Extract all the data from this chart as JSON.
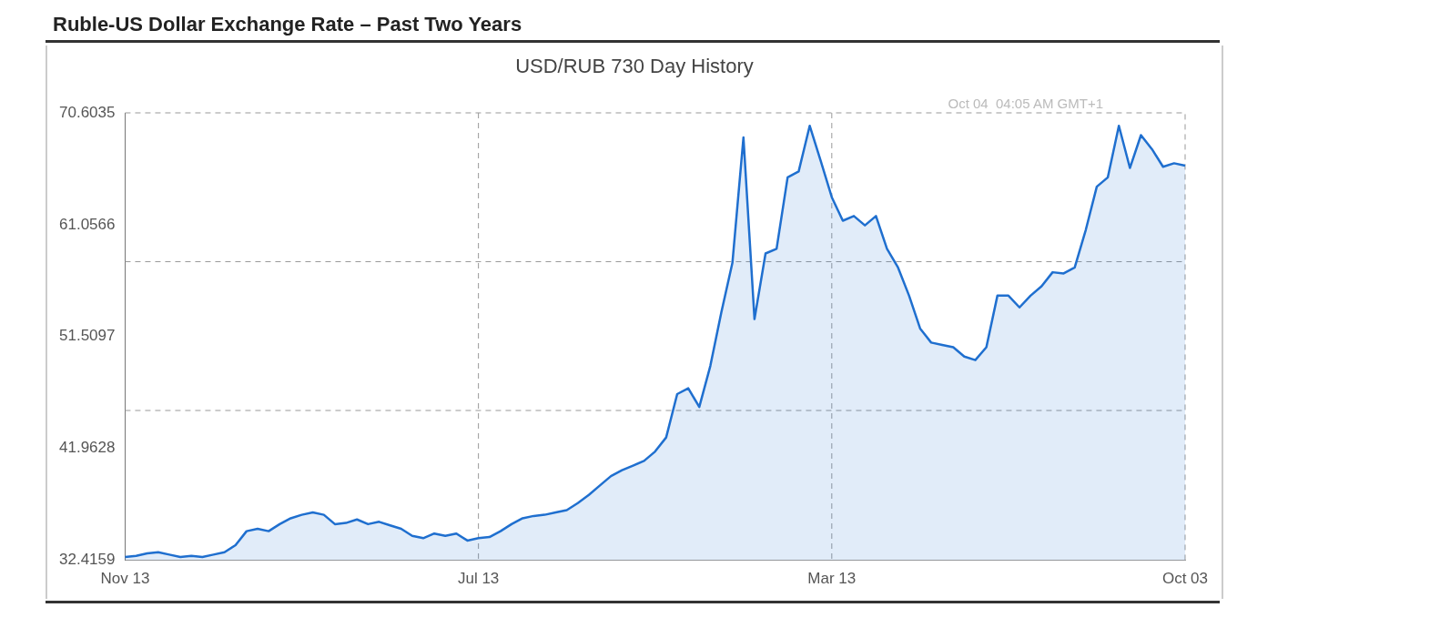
{
  "chart_data": {
    "type": "area",
    "title": "Ruble-US Dollar Exchange Rate – Past Two Years",
    "subtitle": "USD/RUB  730 Day History",
    "annotations": [
      "Oct 04  04:05 AM GMT+1"
    ],
    "categories": [
      "Nov 13",
      null,
      null,
      null,
      null,
      null,
      null,
      null,
      null,
      null,
      null,
      null,
      null,
      null,
      null,
      null,
      null,
      null,
      null,
      null,
      null,
      null,
      null,
      null,
      null,
      null,
      null,
      null,
      null,
      null,
      null,
      null,
      "Jul 13",
      null,
      null,
      null,
      null,
      null,
      null,
      null,
      null,
      null,
      null,
      null,
      null,
      null,
      null,
      null,
      null,
      null,
      null,
      null,
      null,
      null,
      null,
      null,
      null,
      null,
      null,
      null,
      null,
      null,
      null,
      null,
      "Mar 13",
      null,
      null,
      null,
      null,
      null,
      null,
      null,
      null,
      null,
      null,
      null,
      null,
      null,
      null,
      null,
      null,
      null,
      null,
      null,
      null,
      null,
      null,
      null,
      null,
      null,
      null,
      null,
      null,
      null,
      null,
      null,
      "Oct 03"
    ],
    "values": [
      32.7,
      32.8,
      33.0,
      33.1,
      32.9,
      32.7,
      32.8,
      32.7,
      32.9,
      33.1,
      33.7,
      34.9,
      35.1,
      34.9,
      35.5,
      36.0,
      36.3,
      36.5,
      36.3,
      35.5,
      35.6,
      35.9,
      35.5,
      35.7,
      35.4,
      35.1,
      34.5,
      34.3,
      34.7,
      34.5,
      34.7,
      34.1,
      34.3,
      34.4,
      34.9,
      35.5,
      36.0,
      36.2,
      36.3,
      36.5,
      36.7,
      37.3,
      38.0,
      38.8,
      39.6,
      40.1,
      40.5,
      40.9,
      41.7,
      42.9,
      46.6,
      47.1,
      45.5,
      49.0,
      53.6,
      57.8,
      68.5,
      53.0,
      58.6,
      59.0,
      65.1,
      65.6,
      69.5,
      66.5,
      63.4,
      61.4,
      61.8,
      61.0,
      61.8,
      59.0,
      57.4,
      55.0,
      52.2,
      51.0,
      50.8,
      50.6,
      49.8,
      49.5,
      50.6,
      55.0,
      55.0,
      54.0,
      55.0,
      55.8,
      57.0,
      56.9,
      57.4,
      60.6,
      64.3,
      65.1,
      69.5,
      65.9,
      68.7,
      67.5,
      66.0,
      66.3,
      66.1
    ],
    "color": "#1f6fcf",
    "ylim": [
      32.4159,
      70.6035
    ],
    "yticks": [
      32.4159,
      41.9628,
      51.5097,
      61.0566,
      70.6035
    ],
    "grid": false,
    "legend": false,
    "ref_lines": [
      {
        "axis": "y",
        "value": 45.2,
        "color": "#999999",
        "line_style": "dashed"
      },
      {
        "axis": "y",
        "value": 57.9,
        "color": "#999999",
        "line_style": "dashed"
      },
      {
        "axis": "x",
        "value": "Jul 13",
        "color": "#999999",
        "line_style": "dashed"
      },
      {
        "axis": "x",
        "value": "Mar 13",
        "color": "#999999",
        "line_style": "dashed"
      }
    ]
  }
}
